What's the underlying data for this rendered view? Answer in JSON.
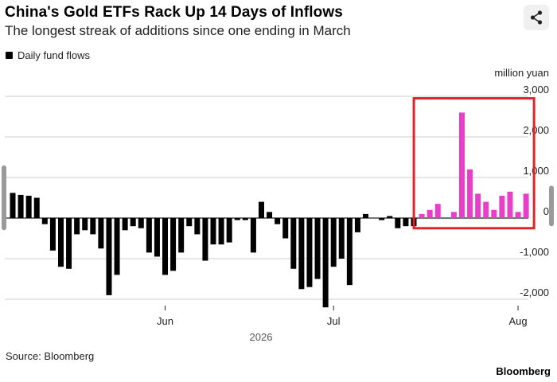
{
  "header": {
    "title": "China's Gold ETFs Rack Up 14 Days of Inflows",
    "subtitle": "The longest streak of additions since one ending in March"
  },
  "legend": {
    "label": "Daily fund flows"
  },
  "footer": {
    "source": "Source: Bloomberg",
    "brand": "Bloomberg"
  },
  "icons": {
    "share": "share-icon"
  },
  "colors": {
    "outflow_or_pre_streak": "#000000",
    "streak": "#e83fc9",
    "highlight_box": "#e0242b"
  },
  "chart_data": {
    "type": "bar",
    "title": "China's Gold ETFs Rack Up 14 Days of Inflows",
    "subtitle": "The longest streak of additions since one ending in March",
    "ylabel": "million yuan",
    "ylim": [
      -2200,
      3000
    ],
    "yticks": [
      3000,
      2000,
      1000,
      0,
      -1000,
      -2000
    ],
    "ytick_labels": [
      "3,000",
      "2,000",
      "1,000",
      "0",
      "-1,000",
      "-2,000"
    ],
    "x_ticks": [
      {
        "label": "Jun",
        "index": 19
      },
      {
        "label": "Jul",
        "index": 40
      },
      {
        "label": "Aug",
        "index": 63
      }
    ],
    "year_label": "2026",
    "grid": true,
    "legend_position": "top-left",
    "series": [
      {
        "name": "Daily fund flows",
        "values": [
          620,
          570,
          550,
          500,
          -150,
          -800,
          -1200,
          -1250,
          -400,
          -300,
          -400,
          -750,
          -1900,
          -1400,
          -300,
          -200,
          -250,
          -850,
          -950,
          -1400,
          -1300,
          -850,
          -200,
          -400,
          -1050,
          -650,
          -650,
          -600,
          -50,
          -50,
          -850,
          400,
          150,
          -150,
          -500,
          -1250,
          -1750,
          -1700,
          -1500,
          -2200,
          -1200,
          -1000,
          -1650,
          -350,
          100,
          0,
          -50,
          50,
          -250,
          -200,
          -200,
          100,
          200,
          350,
          0,
          150,
          2600,
          1200,
          600,
          400,
          200,
          550,
          650,
          150,
          600
        ],
        "highlight_from_index": 51,
        "highlighted_label_count_days": 14
      }
    ],
    "annotation": "red box highlights the 14-day inflow streak"
  }
}
